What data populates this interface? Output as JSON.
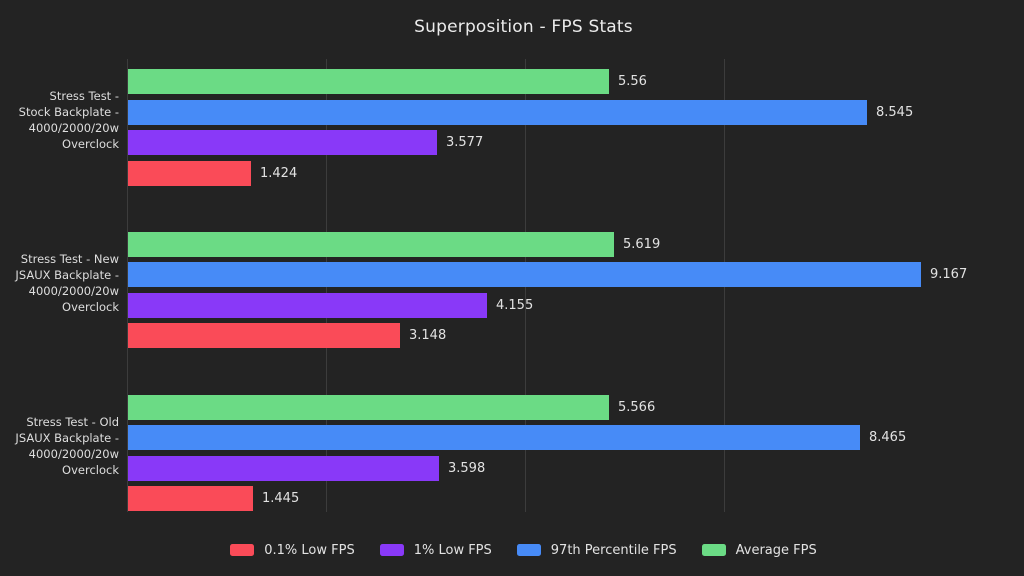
{
  "title": "Superposition - FPS Stats",
  "colors": {
    "background": "#232323",
    "grid": "#3c3c3c",
    "axis": "#3c3c3c",
    "title_text": "#ebebeb",
    "label_text": "#dedede",
    "value_text": "#e2e2e2",
    "red": "#fa4b58",
    "purple": "#8939f8",
    "blue": "#478bf7",
    "green": "#6bdb85"
  },
  "chart_data": {
    "type": "bar",
    "orientation": "horizontal",
    "title": "Superposition - FPS Stats",
    "xlabel": "",
    "ylabel": "",
    "grid": true,
    "x_gridlines_labeled": false,
    "xlim": [
      0,
      10.25
    ],
    "legend_position": "bottom",
    "categories": [
      "Stress Test - Stock Backplate - 4000/2000/20w Overclock",
      "Stress Test - New JSAUX Backplate - 4000/2000/20w Overclock",
      "Stress Test - Old JSAUX Backplate - 4000/2000/20w Overclock"
    ],
    "category_label_lines": [
      [
        "Stress Test -",
        "Stock Backplate -",
        "4000/2000/20w",
        "Overclock"
      ],
      [
        "Stress Test - New",
        "JSAUX Backplate -",
        "4000/2000/20w",
        "Overclock"
      ],
      [
        "Stress Test - Old",
        "JSAUX Backplate -",
        "4000/2000/20w",
        "Overclock"
      ]
    ],
    "row_order_top_to_bottom": [
      "Average FPS",
      "97th Percentile FPS",
      "1% Low FPS",
      "0.1% Low FPS"
    ],
    "series": [
      {
        "name": "0.1% Low FPS",
        "color": "#fa4b58",
        "values": [
          1.424,
          3.148,
          1.445
        ],
        "labels": [
          "1.424",
          "3.148",
          "1.445"
        ]
      },
      {
        "name": "1% Low FPS",
        "color": "#8939f8",
        "values": [
          3.577,
          4.155,
          3.598
        ],
        "labels": [
          "3.577",
          "4.155",
          "3.598"
        ]
      },
      {
        "name": "97th Percentile FPS",
        "color": "#478bf7",
        "values": [
          8.545,
          9.167,
          8.465
        ],
        "labels": [
          "8.545",
          "9.167",
          "8.465"
        ]
      },
      {
        "name": "Average FPS",
        "color": "#6bdb85",
        "values": [
          5.56,
          5.619,
          5.566
        ],
        "labels": [
          "5.56",
          "5.619",
          "5.566"
        ]
      }
    ],
    "legend": [
      "0.1% Low FPS",
      "1% Low FPS",
      "97th Percentile FPS",
      "Average FPS"
    ]
  }
}
